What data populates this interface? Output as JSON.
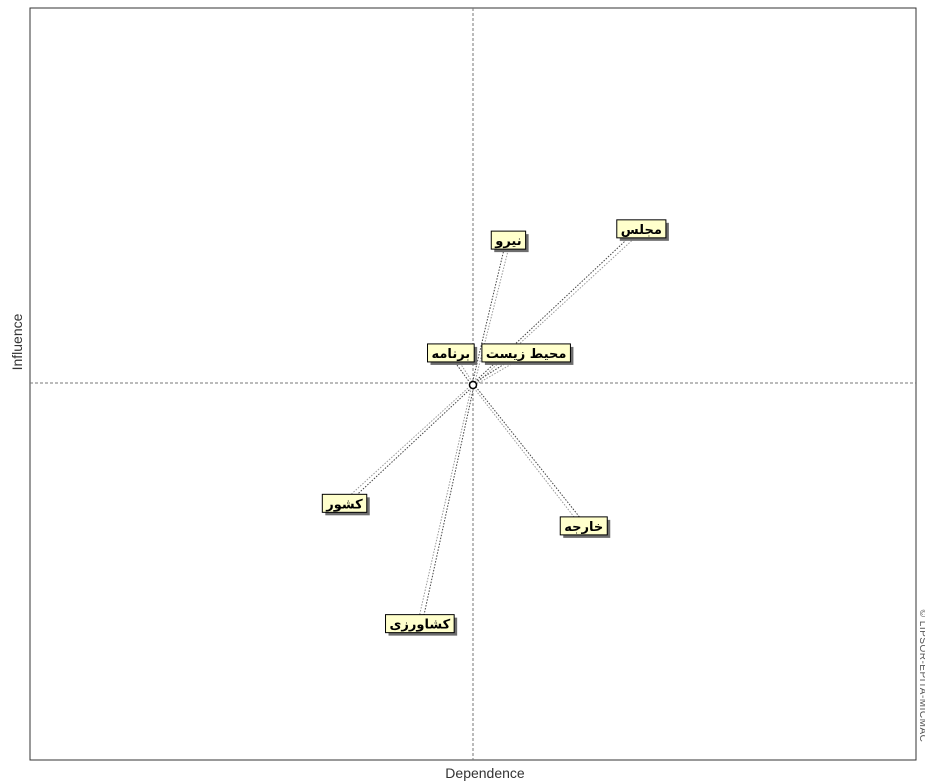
{
  "chart_data": {
    "type": "scatter",
    "title": "",
    "xlabel": "Dependence",
    "ylabel": "Influence",
    "xlim": [
      -100,
      100
    ],
    "ylim": [
      -100,
      100
    ],
    "grid": false,
    "center": {
      "x": 0,
      "y": 0
    },
    "series": [
      {
        "points": [
          {
            "label": "مجلس",
            "x": 38,
            "y": 41
          },
          {
            "label": "نیرو",
            "x": 8,
            "y": 38
          },
          {
            "label": "برنامه",
            "x": -5,
            "y": 8
          },
          {
            "label": "محیط زیست",
            "x": 12,
            "y": 8
          },
          {
            "label": "کشور",
            "x": -29,
            "y": -32
          },
          {
            "label": "خارجه",
            "x": 25,
            "y": -38
          },
          {
            "label": "کشاورزی",
            "x": -12,
            "y": -64
          }
        ]
      }
    ]
  },
  "watermark": "© LIPSOR-EPITA-MICMAC"
}
